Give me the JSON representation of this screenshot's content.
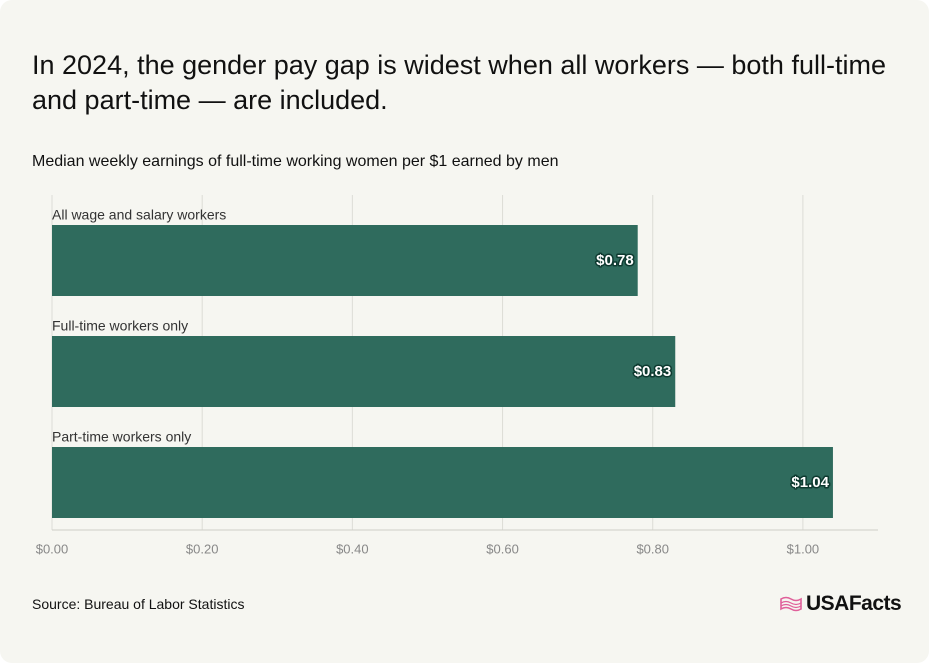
{
  "chart_data": {
    "type": "barh",
    "title": "In 2024, the gender pay gap is widest when all workers — both full-time and part-time — are included.",
    "subtitle": "Median weekly earnings of full-time working women per $1 earned by men",
    "categories": [
      "All wage and salary workers",
      "Full-time workers only",
      "Part-time workers only"
    ],
    "values": [
      0.78,
      0.83,
      1.04
    ],
    "value_labels": [
      "$0.78",
      "$0.83",
      "$1.04"
    ],
    "color": "#2f6b5d",
    "xlim": [
      0,
      1.1
    ],
    "xticks": [
      {
        "value": 0,
        "label": "$0.00"
      },
      {
        "value": 0.2,
        "label": "$0.20"
      },
      {
        "value": 0.4,
        "label": "$0.40"
      },
      {
        "value": 0.6,
        "label": "$0.60"
      },
      {
        "value": 0.8,
        "label": "$0.80"
      },
      {
        "value": 1.0,
        "label": "$1.00"
      }
    ],
    "grid": true,
    "source": "Source: Bureau of Labor Statistics",
    "logo": "USAFacts"
  }
}
